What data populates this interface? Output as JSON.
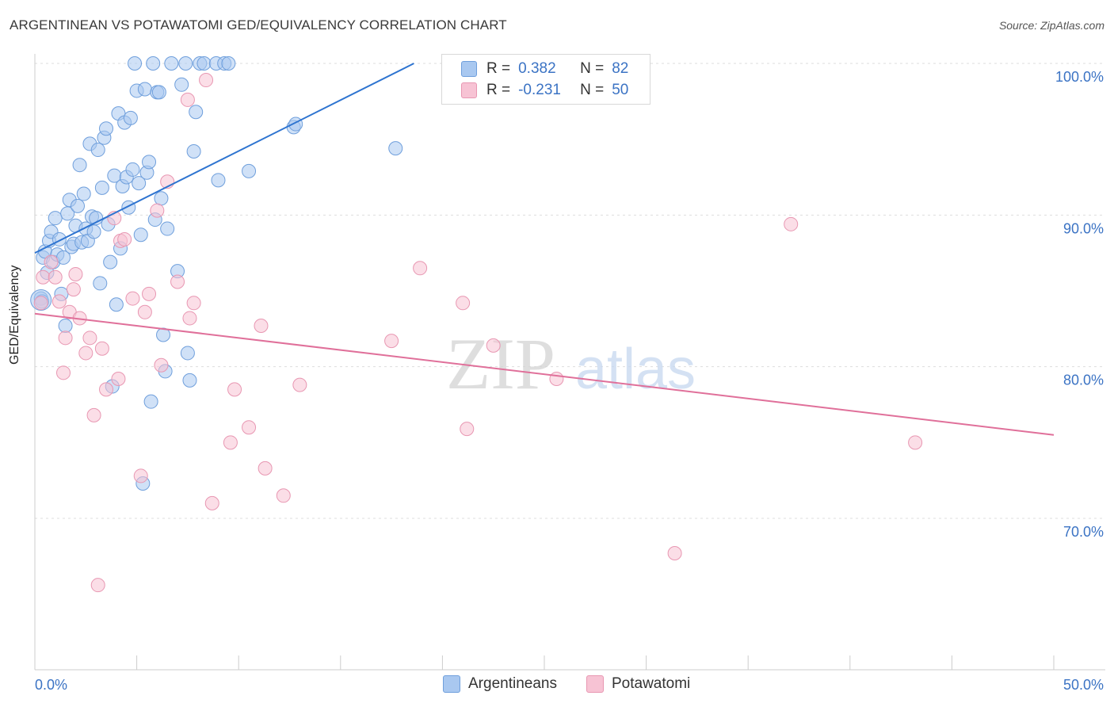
{
  "title": "ARGENTINEAN VS POTAWATOMI GED/EQUIVALENCY CORRELATION CHART",
  "source": "Source: ZipAtlas.com",
  "watermark": {
    "zip": "ZIP",
    "atlas": "atlas"
  },
  "legend": {
    "rows": [
      {
        "r_label": "R =",
        "r_value": "0.382",
        "n_label": "N =",
        "n_value": "82"
      },
      {
        "r_label": "R =",
        "r_value": "-0.231",
        "n_label": "N =",
        "n_value": "50"
      }
    ]
  },
  "colors": {
    "blue_fill": "#a9c8f0",
    "blue_stroke": "#6f9fdc",
    "blue_line": "#2e74d0",
    "pink_fill": "#f7c3d4",
    "pink_stroke": "#e897b2",
    "pink_line": "#e0709a",
    "tick_text": "#3b73c4",
    "grid": "#dddddd"
  },
  "chart_data": {
    "type": "scatter",
    "title": "ARGENTINEAN VS POTAWATOMI GED/EQUIVALENCY CORRELATION CHART",
    "xlabel": "",
    "ylabel": "GED/Equivalency",
    "xlim": [
      0,
      50
    ],
    "ylim": [
      60,
      100
    ],
    "x_tick_labels": [
      "0.0%",
      "50.0%"
    ],
    "y_ticks": [
      70,
      80,
      90,
      100
    ],
    "y_tick_labels": [
      "70.0%",
      "80.0%",
      "90.0%",
      "100.0%"
    ],
    "legend_position": "bottom",
    "series": [
      {
        "name": "Argentineans",
        "r": 0.382,
        "n": 82,
        "trend": {
          "x": [
            0,
            18.6
          ],
          "y": [
            87.5,
            100.0
          ]
        },
        "points": [
          [
            0.3,
            84.5
          ],
          [
            0.4,
            87.2
          ],
          [
            0.5,
            87.6
          ],
          [
            0.6,
            86.2
          ],
          [
            0.7,
            88.3
          ],
          [
            0.8,
            88.9
          ],
          [
            0.9,
            86.9
          ],
          [
            1.0,
            89.8
          ],
          [
            1.1,
            87.4
          ],
          [
            1.2,
            88.4
          ],
          [
            1.3,
            84.8
          ],
          [
            1.4,
            87.2
          ],
          [
            1.5,
            82.7
          ],
          [
            1.6,
            90.1
          ],
          [
            1.7,
            91.0
          ],
          [
            1.8,
            87.9
          ],
          [
            1.9,
            88.1
          ],
          [
            2.0,
            89.3
          ],
          [
            2.1,
            90.6
          ],
          [
            2.2,
            93.3
          ],
          [
            2.3,
            88.2
          ],
          [
            2.4,
            91.4
          ],
          [
            2.5,
            89.1
          ],
          [
            2.6,
            88.3
          ],
          [
            2.7,
            94.7
          ],
          [
            2.8,
            89.9
          ],
          [
            2.9,
            88.9
          ],
          [
            3.0,
            89.8
          ],
          [
            3.1,
            94.3
          ],
          [
            3.2,
            85.5
          ],
          [
            3.3,
            91.8
          ],
          [
            3.4,
            95.1
          ],
          [
            3.5,
            95.7
          ],
          [
            3.6,
            89.4
          ],
          [
            3.7,
            86.9
          ],
          [
            3.8,
            78.7
          ],
          [
            3.9,
            92.6
          ],
          [
            4.0,
            84.1
          ],
          [
            4.1,
            96.7
          ],
          [
            4.2,
            87.8
          ],
          [
            4.3,
            91.9
          ],
          [
            4.4,
            96.1
          ],
          [
            4.5,
            92.5
          ],
          [
            4.6,
            90.5
          ],
          [
            4.7,
            96.4
          ],
          [
            4.8,
            93.0
          ],
          [
            4.9,
            100.0
          ],
          [
            5.0,
            98.2
          ],
          [
            5.1,
            92.1
          ],
          [
            5.2,
            88.7
          ],
          [
            5.3,
            72.3
          ],
          [
            5.4,
            98.3
          ],
          [
            5.5,
            92.8
          ],
          [
            5.6,
            93.5
          ],
          [
            5.7,
            77.7
          ],
          [
            5.8,
            100.0
          ],
          [
            5.9,
            89.7
          ],
          [
            6.0,
            98.1
          ],
          [
            6.1,
            98.1
          ],
          [
            6.2,
            91.1
          ],
          [
            6.3,
            82.1
          ],
          [
            6.4,
            79.7
          ],
          [
            6.5,
            89.1
          ],
          [
            6.7,
            100.0
          ],
          [
            7.0,
            86.3
          ],
          [
            7.2,
            98.6
          ],
          [
            7.4,
            100.0
          ],
          [
            7.5,
            80.9
          ],
          [
            7.6,
            79.1
          ],
          [
            7.8,
            94.2
          ],
          [
            7.9,
            96.8
          ],
          [
            8.1,
            100.0
          ],
          [
            8.3,
            100.0
          ],
          [
            8.9,
            100.0
          ],
          [
            9.0,
            92.3
          ],
          [
            9.3,
            100.0
          ],
          [
            9.5,
            100.0
          ],
          [
            10.5,
            92.9
          ],
          [
            12.7,
            95.8
          ],
          [
            12.8,
            96.0
          ],
          [
            17.7,
            94.4
          ],
          [
            0.35,
            84.3
          ]
        ]
      },
      {
        "name": "Potawatomi",
        "r": -0.231,
        "n": 50,
        "trend": {
          "x": [
            0,
            50
          ],
          "y": [
            83.5,
            75.5
          ]
        },
        "points": [
          [
            0.3,
            84.2
          ],
          [
            0.4,
            85.9
          ],
          [
            0.8,
            86.9
          ],
          [
            1.0,
            85.9
          ],
          [
            1.2,
            84.3
          ],
          [
            1.4,
            79.6
          ],
          [
            1.5,
            81.9
          ],
          [
            1.7,
            83.6
          ],
          [
            1.9,
            85.1
          ],
          [
            2.0,
            86.1
          ],
          [
            2.2,
            83.2
          ],
          [
            2.5,
            80.9
          ],
          [
            2.7,
            81.9
          ],
          [
            2.9,
            76.8
          ],
          [
            3.1,
            65.6
          ],
          [
            3.3,
            81.2
          ],
          [
            3.5,
            78.5
          ],
          [
            3.9,
            89.8
          ],
          [
            4.1,
            79.2
          ],
          [
            4.2,
            88.3
          ],
          [
            4.4,
            88.4
          ],
          [
            4.8,
            84.5
          ],
          [
            5.2,
            72.8
          ],
          [
            5.4,
            83.6
          ],
          [
            5.6,
            84.8
          ],
          [
            6.0,
            90.3
          ],
          [
            6.2,
            80.1
          ],
          [
            7.0,
            85.6
          ],
          [
            7.5,
            97.6
          ],
          [
            7.6,
            83.2
          ],
          [
            7.8,
            84.2
          ],
          [
            8.4,
            98.9
          ],
          [
            8.7,
            71.0
          ],
          [
            9.6,
            75.0
          ],
          [
            9.8,
            78.5
          ],
          [
            10.5,
            76.0
          ],
          [
            11.1,
            82.7
          ],
          [
            11.3,
            73.3
          ],
          [
            12.2,
            71.5
          ],
          [
            13.0,
            78.8
          ],
          [
            17.5,
            81.7
          ],
          [
            18.9,
            86.5
          ],
          [
            21.0,
            84.2
          ],
          [
            21.2,
            75.9
          ],
          [
            22.5,
            81.4
          ],
          [
            25.6,
            79.2
          ],
          [
            31.4,
            67.7
          ],
          [
            37.1,
            89.4
          ],
          [
            43.2,
            75.0
          ],
          [
            6.5,
            92.2
          ]
        ]
      }
    ]
  }
}
